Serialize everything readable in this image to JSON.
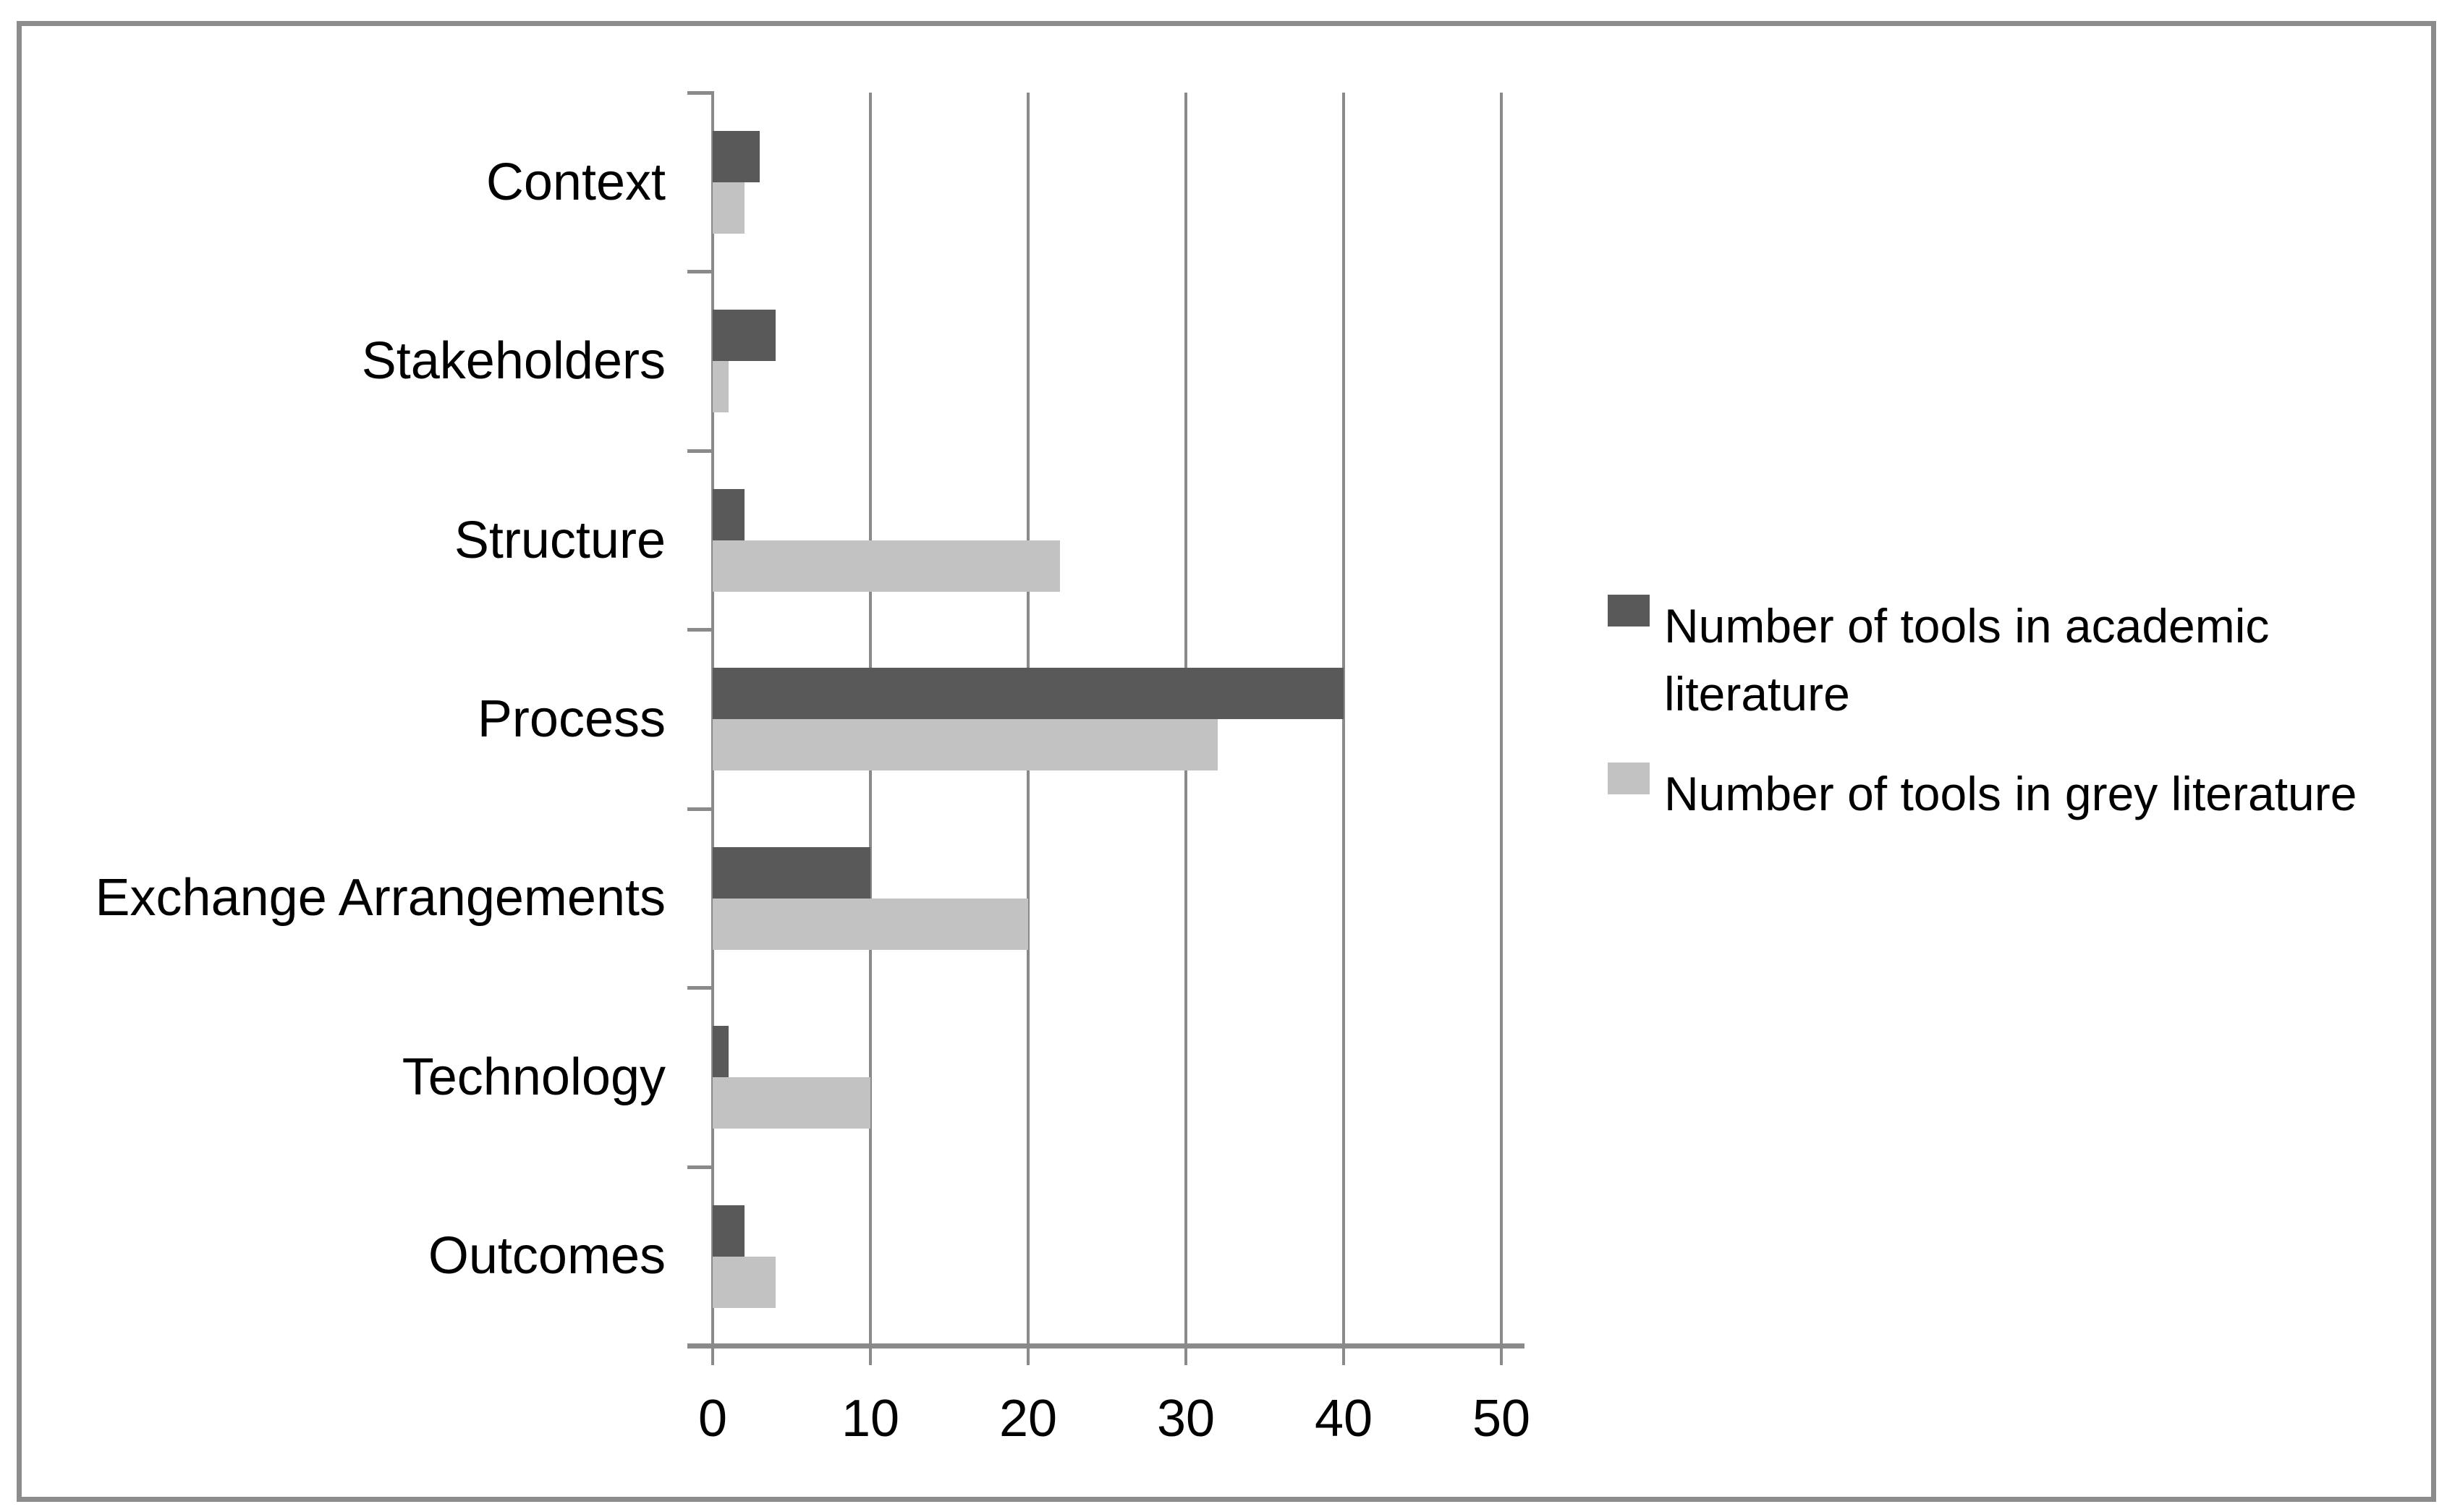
{
  "chart_data": {
    "type": "bar",
    "orientation": "horizontal",
    "title": "",
    "xlabel": "",
    "ylabel": "",
    "categories": [
      "Context",
      "Stakeholders",
      "Structure",
      "Process",
      "Exchange Arrangements",
      "Technology",
      "Outcomes"
    ],
    "series": [
      {
        "name": "Number of tools in academic literature",
        "color": "#595959",
        "values": [
          3,
          4,
          2,
          40,
          10,
          1,
          2
        ]
      },
      {
        "name": "Number of tools in grey literature",
        "color": "#c2c2c2",
        "values": [
          2,
          1,
          22,
          32,
          20,
          10,
          4
        ]
      }
    ],
    "x_ticks": [
      "0",
      "10",
      "20",
      "30",
      "40",
      "50"
    ],
    "xlim": [
      0,
      50
    ],
    "grid": "vertical-gridlines-on",
    "legend_position": "right-middle"
  },
  "colors": {
    "grid_line": "#8a8a8a",
    "axis_line": "#8a8a8a",
    "frame_border": "#8c8c8c",
    "background": "#ffffff",
    "text": "#000000"
  }
}
